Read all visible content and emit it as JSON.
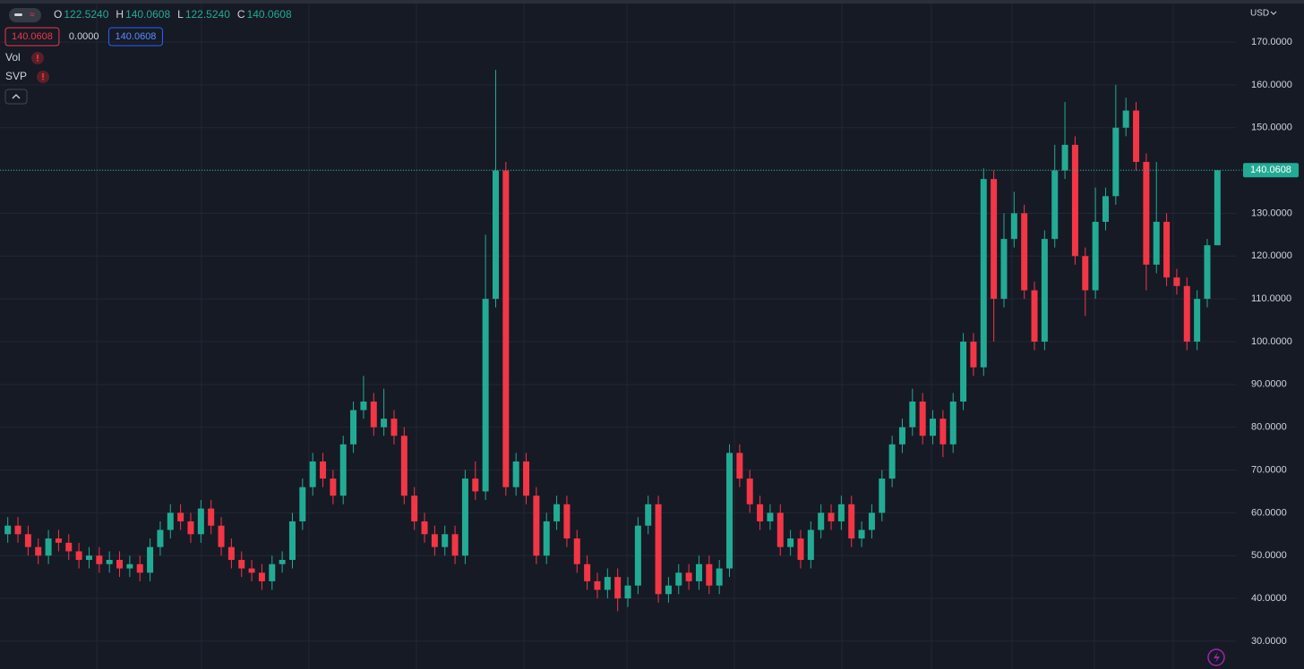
{
  "chart_data": {
    "type": "candlestick",
    "currency": "USD",
    "header": [
      {
        "key": "O",
        "value": "122.5240"
      },
      {
        "key": "H",
        "value": "140.0608"
      },
      {
        "key": "L",
        "value": "122.5240"
      },
      {
        "key": "C",
        "value": "140.0608"
      }
    ],
    "legend_values": [
      "140.0608",
      "0.0000",
      "140.0608"
    ],
    "indicators": [
      "Vol",
      "SVP"
    ],
    "last_price_label": "140.0608",
    "up_color": "#22ab94",
    "down_color": "#f23645",
    "grid": true,
    "ylim": [
      23.5,
      179
    ],
    "yticks": [
      {
        "value": 30,
        "label": "30.0000"
      },
      {
        "value": 40,
        "label": "40.0000"
      },
      {
        "value": 50,
        "label": "50.0000"
      },
      {
        "value": 60,
        "label": "60.0000"
      },
      {
        "value": 70,
        "label": "70.0000"
      },
      {
        "value": 80,
        "label": "80.0000"
      },
      {
        "value": 90,
        "label": "90.0000"
      },
      {
        "value": 100,
        "label": "100.0000"
      },
      {
        "value": 110,
        "label": "110.0000"
      },
      {
        "value": 120,
        "label": "120.0000"
      },
      {
        "value": 130,
        "label": "130.0000"
      },
      {
        "value": 140,
        "label": "140.0000"
      },
      {
        "value": 150,
        "label": "150.0000"
      },
      {
        "value": 160,
        "label": "160.0000"
      },
      {
        "value": 170,
        "label": "170.0000"
      }
    ],
    "open": [
      55,
      57,
      55,
      52,
      50,
      54,
      53,
      51,
      49,
      50,
      48,
      49,
      47,
      48,
      46,
      52,
      56,
      60,
      58,
      55,
      61,
      57,
      52,
      49,
      47,
      46,
      44,
      48,
      49,
      58,
      66,
      72,
      68,
      64,
      76,
      84,
      86,
      80,
      82,
      78,
      64,
      58,
      55,
      52,
      55,
      50,
      68,
      65,
      110,
      140,
      66,
      72,
      64,
      50,
      58,
      62,
      54,
      48,
      44,
      42,
      45,
      40,
      43,
      57,
      62,
      41,
      43,
      46,
      44,
      48,
      43,
      47,
      74,
      68,
      62,
      58,
      60,
      52,
      54,
      49,
      56,
      60,
      58,
      62,
      54,
      56,
      60,
      68,
      76,
      80,
      86,
      78,
      82,
      76,
      86,
      100,
      94,
      138,
      110,
      124,
      130,
      112,
      100,
      124,
      140,
      146,
      120,
      112,
      128,
      134,
      150,
      154,
      142,
      118,
      128,
      115,
      113,
      100,
      110,
      122.524
    ],
    "high": [
      59,
      59,
      57,
      54,
      56,
      56,
      55,
      53,
      52,
      52,
      51,
      51,
      50,
      50,
      54,
      58,
      62,
      62,
      60,
      63,
      63,
      59,
      54,
      51,
      49,
      48,
      50,
      51,
      60,
      68,
      74,
      74,
      70,
      78,
      86,
      92,
      88,
      89,
      84,
      80,
      66,
      60,
      57,
      57,
      57,
      70,
      72,
      125,
      163.5,
      142,
      74,
      74,
      66,
      60,
      64,
      64,
      56,
      50,
      46,
      47,
      47,
      45,
      59,
      64,
      64,
      45,
      48,
      48,
      50,
      50,
      49,
      76,
      76,
      70,
      64,
      62,
      62,
      56,
      56,
      58,
      62,
      62,
      64,
      64,
      58,
      62,
      70,
      78,
      82,
      89,
      88,
      84,
      84,
      88,
      102,
      102,
      140.5,
      140,
      130,
      135,
      132,
      114,
      126,
      146,
      156,
      148,
      122,
      136,
      136,
      160,
      157,
      156,
      144,
      142,
      130,
      117,
      115,
      112,
      124,
      140.0608
    ],
    "low": [
      53,
      53,
      50,
      48,
      48,
      51,
      49,
      47,
      47,
      46,
      46,
      45,
      45,
      44,
      44,
      50,
      54,
      56,
      53,
      53,
      55,
      50,
      47,
      45,
      44,
      42,
      42,
      46,
      47,
      56,
      64,
      66,
      62,
      62,
      74,
      82,
      78,
      78,
      76,
      62,
      56,
      53,
      50,
      50,
      48,
      48,
      63,
      63,
      108,
      64,
      64,
      62,
      48,
      48,
      56,
      52,
      46,
      42,
      40,
      40,
      37,
      38,
      41,
      55,
      39,
      39,
      41,
      42,
      42,
      41,
      41,
      45,
      66,
      60,
      56,
      56,
      50,
      50,
      47,
      47,
      54,
      56,
      56,
      52,
      52,
      54,
      58,
      66,
      74,
      78,
      76,
      76,
      73,
      74,
      84,
      92,
      92,
      100,
      108,
      122,
      110,
      98,
      98,
      122,
      138,
      118,
      106,
      110,
      126,
      132,
      148,
      140,
      112,
      116,
      113,
      111,
      98,
      98,
      108,
      122.524
    ],
    "close": [
      57,
      55,
      52,
      50,
      54,
      53,
      51,
      49,
      50,
      48,
      49,
      47,
      48,
      46,
      52,
      56,
      60,
      58,
      55,
      61,
      57,
      52,
      49,
      47,
      46,
      44,
      48,
      49,
      58,
      66,
      72,
      68,
      64,
      76,
      84,
      86,
      80,
      82,
      78,
      64,
      58,
      55,
      52,
      55,
      50,
      68,
      65,
      110,
      140,
      66,
      72,
      64,
      50,
      58,
      62,
      54,
      48,
      44,
      42,
      45,
      40,
      43,
      57,
      62,
      41,
      43,
      46,
      44,
      48,
      43,
      47,
      74,
      68,
      62,
      58,
      60,
      52,
      54,
      49,
      56,
      60,
      58,
      62,
      54,
      56,
      60,
      68,
      76,
      80,
      86,
      78,
      82,
      76,
      86,
      100,
      94,
      138,
      110,
      124,
      130,
      112,
      100,
      124,
      140,
      146,
      120,
      112,
      128,
      134,
      150,
      154,
      142,
      118,
      128,
      115,
      113,
      100,
      110,
      122.524,
      140.0608
    ]
  }
}
